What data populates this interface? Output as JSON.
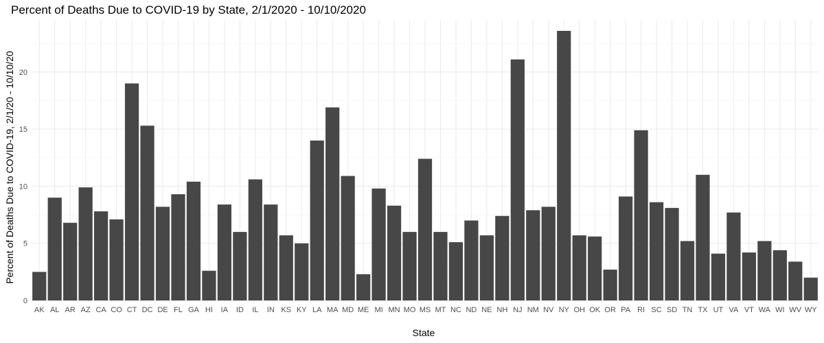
{
  "chart_data": {
    "type": "bar",
    "title": "Percent of Deaths Due to COVID-19 by State, 2/1/2020 - 10/10/2020",
    "xlabel": "State",
    "ylabel": "Percent of Deaths Due to COVID-19, 2/1/20 - 10/10/20",
    "ylim": [
      0,
      24.5
    ],
    "yticks": [
      0,
      5,
      10,
      15,
      20
    ],
    "grid": true,
    "bar_color": "#474747",
    "categories": [
      "AK",
      "AL",
      "AR",
      "AZ",
      "CA",
      "CO",
      "CT",
      "DC",
      "DE",
      "FL",
      "GA",
      "HI",
      "IA",
      "ID",
      "IL",
      "IN",
      "KS",
      "KY",
      "LA",
      "MA",
      "MD",
      "ME",
      "MI",
      "MN",
      "MO",
      "MS",
      "MT",
      "NC",
      "ND",
      "NE",
      "NH",
      "NJ",
      "NM",
      "NV",
      "NY",
      "OH",
      "OK",
      "OR",
      "PA",
      "RI",
      "SC",
      "SD",
      "TN",
      "TX",
      "UT",
      "VA",
      "VT",
      "WA",
      "WI",
      "WV",
      "WY"
    ],
    "values": [
      2.5,
      9.0,
      6.8,
      9.9,
      7.8,
      7.1,
      19.0,
      15.3,
      8.2,
      9.3,
      10.4,
      2.6,
      8.4,
      6.0,
      10.6,
      8.4,
      5.7,
      5.0,
      14.0,
      16.9,
      10.9,
      2.3,
      9.8,
      8.3,
      6.0,
      12.4,
      6.0,
      5.1,
      7.0,
      5.7,
      7.4,
      21.1,
      7.9,
      8.2,
      23.6,
      5.7,
      5.6,
      2.7,
      9.1,
      14.9,
      8.6,
      8.1,
      5.2,
      11.0,
      4.1,
      7.7,
      4.2,
      5.2,
      4.4,
      3.4,
      2.0
    ]
  }
}
